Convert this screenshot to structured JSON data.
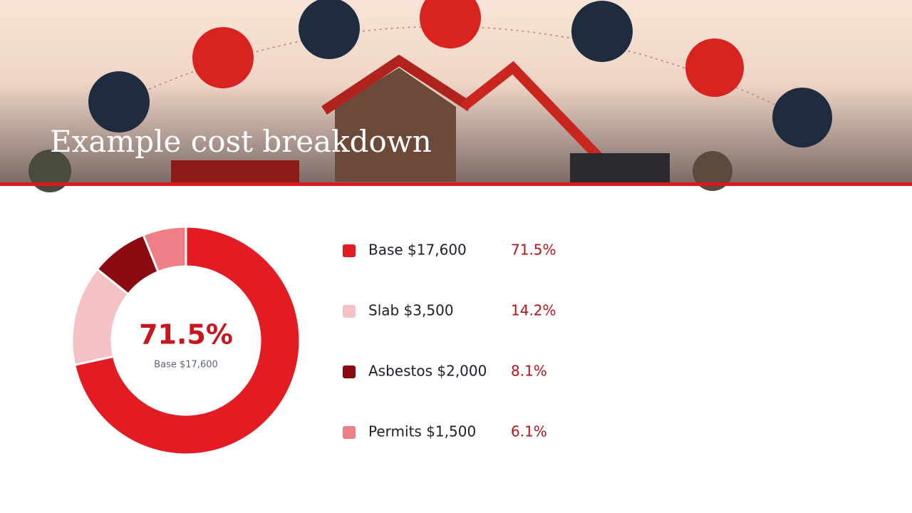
{
  "chart_data": {
    "type": "pie",
    "donut": true,
    "title": "Example cost breakdown",
    "categories": [
      "Base $17,600",
      "Slab $3,500",
      "Asbestos $2,000",
      "Permits $1,500"
    ],
    "values": [
      71.5,
      14.2,
      8.1,
      6.1
    ],
    "value_labels": [
      "71.5%",
      "14.2%",
      "8.1%",
      "6.1%"
    ],
    "colors": [
      "#e31b23",
      "#f4c2c4",
      "#8b0a12",
      "#ef7f86"
    ]
  }
}
